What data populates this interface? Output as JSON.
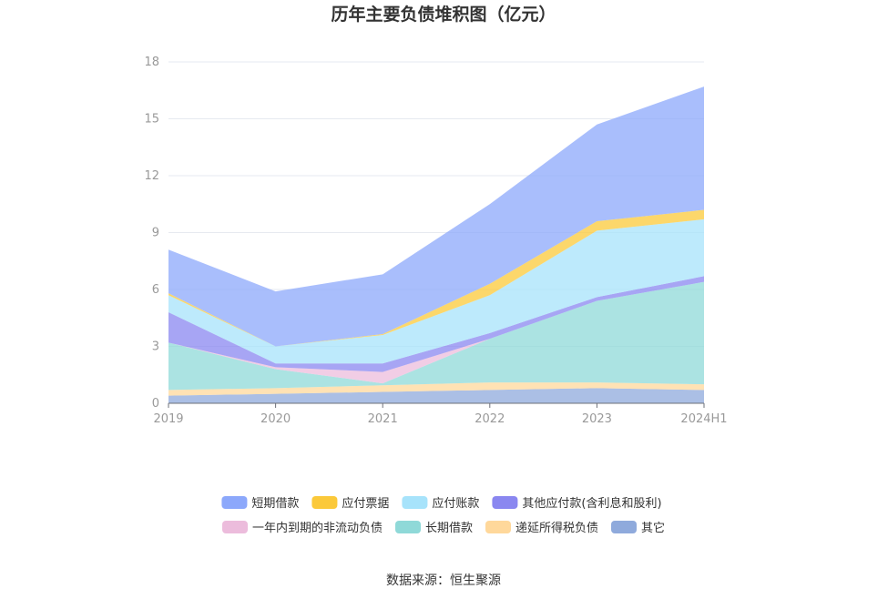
{
  "chart_data": {
    "type": "area",
    "stacked": true,
    "title": "历年主要负债堆积图（亿元）",
    "source": "数据来源：恒生聚源",
    "categories": [
      "2019",
      "2020",
      "2021",
      "2022",
      "2023",
      "2024H1"
    ],
    "ylim": [
      0,
      18
    ],
    "yticks": [
      "0",
      "3",
      "6",
      "9",
      "12",
      "15",
      "18"
    ],
    "grid": true,
    "legend_position": "bottom",
    "series": [
      {
        "name": "其它",
        "color": "#8faadc",
        "values": [
          0.4,
          0.5,
          0.6,
          0.7,
          0.8,
          0.7
        ]
      },
      {
        "name": "递延所得税负债",
        "color": "#ffd89b",
        "values": [
          0.3,
          0.3,
          0.35,
          0.4,
          0.3,
          0.3
        ]
      },
      {
        "name": "长期借款",
        "color": "#8fd9d8",
        "values": [
          2.5,
          1.0,
          0.1,
          2.3,
          4.3,
          5.4
        ]
      },
      {
        "name": "一年内到期的非流动负债",
        "color": "#ecbcdc",
        "values": [
          0.0,
          0.1,
          0.6,
          0.0,
          0.0,
          0.0
        ]
      },
      {
        "name": "其他应付款(含利息和股利)",
        "color": "#8a87f0",
        "values": [
          1.6,
          0.2,
          0.45,
          0.3,
          0.2,
          0.3
        ]
      },
      {
        "name": "应付账款",
        "color": "#a7e3fb",
        "values": [
          0.9,
          0.9,
          1.5,
          2.0,
          3.5,
          3.0
        ]
      },
      {
        "name": "应付票据",
        "color": "#fbc93a",
        "values": [
          0.1,
          0.0,
          0.05,
          0.6,
          0.5,
          0.5
        ]
      },
      {
        "name": "短期借款",
        "color": "#8ca8fb",
        "values": [
          2.3,
          2.9,
          3.15,
          4.2,
          5.1,
          6.5
        ]
      }
    ],
    "legend": [
      {
        "name": "短期借款",
        "color": "#8ca8fb"
      },
      {
        "name": "应付票据",
        "color": "#fbc93a"
      },
      {
        "name": "应付账款",
        "color": "#a7e3fb"
      },
      {
        "name": "其他应付款(含利息和股利)",
        "color": "#8a87f0"
      },
      {
        "name": "一年内到期的非流动负债",
        "color": "#ecbcdc"
      },
      {
        "name": "长期借款",
        "color": "#8fd9d8"
      },
      {
        "name": "递延所得税负债",
        "color": "#ffd89b"
      },
      {
        "name": "其它",
        "color": "#8faadc"
      }
    ]
  }
}
